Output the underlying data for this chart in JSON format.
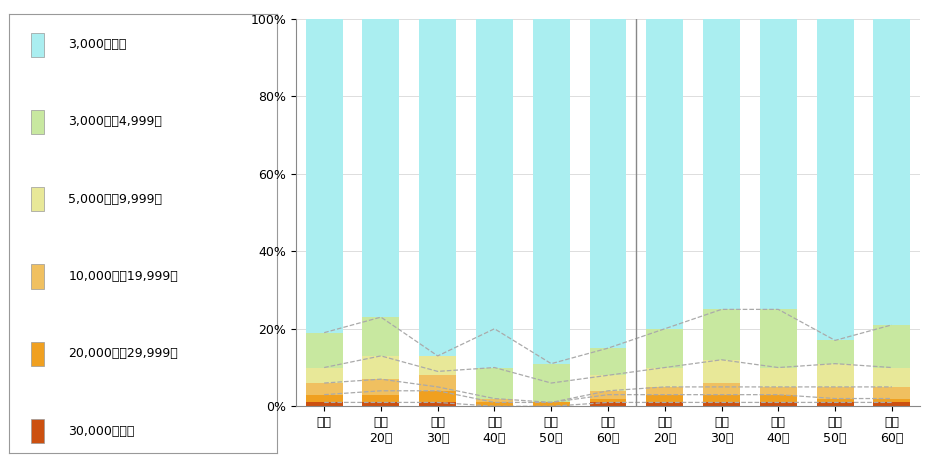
{
  "categories": [
    "全体",
    "男性\n20代",
    "男性\n30代",
    "男性\n40代",
    "男性\n50代",
    "男性\n60代",
    "女性\n20代",
    "女性\n30代",
    "女性\n40代",
    "女性\n50代",
    "女性\n60代"
  ],
  "series": [
    {
      "label": "3,000円未満",
      "color": "#aaeef0",
      "values": [
        0.81,
        0.77,
        0.87,
        0.9,
        0.89,
        0.85,
        0.8,
        0.75,
        0.75,
        0.83,
        0.79
      ]
    },
    {
      "label": "3,000円～4,999円",
      "color": "#c8e8a0",
      "values": [
        0.09,
        0.1,
        0.0,
        0.08,
        0.1,
        0.07,
        0.1,
        0.13,
        0.15,
        0.06,
        0.11
      ]
    },
    {
      "label": "5,000円～9,999円",
      "color": "#e8e898",
      "values": [
        0.04,
        0.06,
        0.05,
        0.0,
        0.0,
        0.04,
        0.05,
        0.06,
        0.05,
        0.06,
        0.05
      ]
    },
    {
      "label": "10,000円～19,999円",
      "color": "#f0c060",
      "values": [
        0.03,
        0.04,
        0.04,
        0.01,
        0.0,
        0.02,
        0.02,
        0.03,
        0.02,
        0.03,
        0.03
      ]
    },
    {
      "label": "20,000円～29,999円",
      "color": "#f0a020",
      "values": [
        0.02,
        0.02,
        0.03,
        0.01,
        0.01,
        0.01,
        0.02,
        0.02,
        0.02,
        0.01,
        0.01
      ]
    },
    {
      "label": "30,000円以上",
      "color": "#cc5010",
      "values": [
        0.01,
        0.01,
        0.01,
        0.0,
        0.0,
        0.01,
        0.01,
        0.01,
        0.01,
        0.01,
        0.01
      ]
    }
  ],
  "dashed_line_values": [
    [
      0.19,
      0.23,
      0.13,
      0.2,
      0.11,
      0.15,
      0.2,
      0.25,
      0.25,
      0.17,
      0.21
    ],
    [
      0.1,
      0.13,
      0.09,
      0.1,
      0.06,
      0.08,
      0.1,
      0.12,
      0.1,
      0.11,
      0.1
    ],
    [
      0.06,
      0.07,
      0.05,
      0.02,
      0.01,
      0.04,
      0.05,
      0.05,
      0.05,
      0.05,
      0.05
    ],
    [
      0.03,
      0.04,
      0.04,
      0.01,
      0.01,
      0.03,
      0.03,
      0.03,
      0.03,
      0.02,
      0.02
    ],
    [
      0.01,
      0.01,
      0.01,
      0.0,
      0.0,
      0.01,
      0.01,
      0.01,
      0.01,
      0.01,
      0.01
    ]
  ],
  "separator_positions": [
    5.5
  ],
  "bar_width": 0.65,
  "ylim": [
    0,
    1.0
  ],
  "yticks": [
    0.0,
    0.2,
    0.4,
    0.6,
    0.8,
    1.0
  ],
  "ytick_labels": [
    "0%",
    "20%",
    "40%",
    "60%",
    "80%",
    "100%"
  ],
  "background_color": "#ffffff",
  "grid_color": "#d0d0d0",
  "tick_fontsize": 9,
  "legend_fontsize": 9
}
